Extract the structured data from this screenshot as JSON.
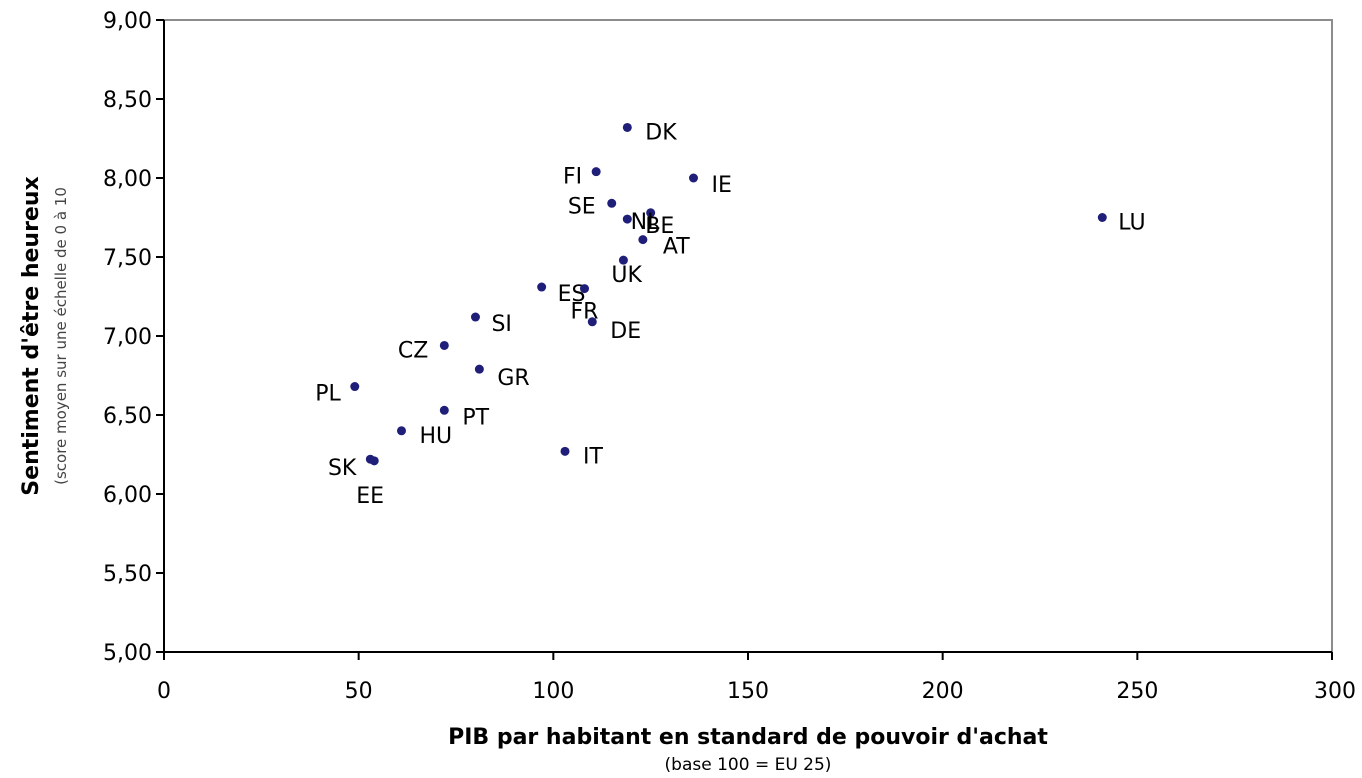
{
  "chart_data": {
    "type": "scatter",
    "xlabel": "PIB par habitant en standard de pouvoir d'achat",
    "xlabel_sub": "(base 100 = EU 25)",
    "ylabel": "Sentiment d'être heureux",
    "ylabel_sub": "(score moyen sur une échelle de 0 à 10",
    "xlim": [
      0,
      300
    ],
    "ylim": [
      5.0,
      9.0
    ],
    "x_ticks": [
      0,
      50,
      100,
      150,
      200,
      250,
      300
    ],
    "x_tick_labels": [
      "0",
      "50",
      "100",
      "150",
      "200",
      "250",
      "300"
    ],
    "y_ticks": [
      5.0,
      5.5,
      6.0,
      6.5,
      7.0,
      7.5,
      8.0,
      8.5,
      9.0
    ],
    "y_tick_labels": [
      "5,00",
      "5,50",
      "6,00",
      "6,50",
      "7,00",
      "7,50",
      "8,00",
      "8,50",
      "9,00"
    ],
    "grid": false,
    "marker_color": "#1f1f7a",
    "points": [
      {
        "label": "DK",
        "x": 119,
        "y": 8.32
      },
      {
        "label": "FI",
        "x": 111,
        "y": 8.04
      },
      {
        "label": "IE",
        "x": 136,
        "y": 8.0
      },
      {
        "label": "NL",
        "x": 125,
        "y": 7.78
      },
      {
        "label": "SE",
        "x": 115,
        "y": 7.84
      },
      {
        "label": "BE",
        "x": 119,
        "y": 7.74
      },
      {
        "label": "AT",
        "x": 123,
        "y": 7.61
      },
      {
        "label": "LU",
        "x": 241,
        "y": 7.75
      },
      {
        "label": "ES",
        "x": 97,
        "y": 7.31
      },
      {
        "label": "UK",
        "x": 118,
        "y": 7.48
      },
      {
        "label": "DE",
        "x": 110,
        "y": 7.09
      },
      {
        "label": "FR",
        "x": 108,
        "y": 7.3
      },
      {
        "label": "SI",
        "x": 80,
        "y": 7.12
      },
      {
        "label": "CZ",
        "x": 72,
        "y": 6.94
      },
      {
        "label": "GR",
        "x": 81,
        "y": 6.79
      },
      {
        "label": "PL",
        "x": 49,
        "y": 6.68
      },
      {
        "label": "PT",
        "x": 72,
        "y": 6.53
      },
      {
        "label": "HU",
        "x": 61,
        "y": 6.4
      },
      {
        "label": "SK",
        "x": 53,
        "y": 6.22
      },
      {
        "label": "EE",
        "x": 54,
        "y": 6.21
      },
      {
        "label": "IT",
        "x": 103,
        "y": 6.27
      }
    ]
  }
}
